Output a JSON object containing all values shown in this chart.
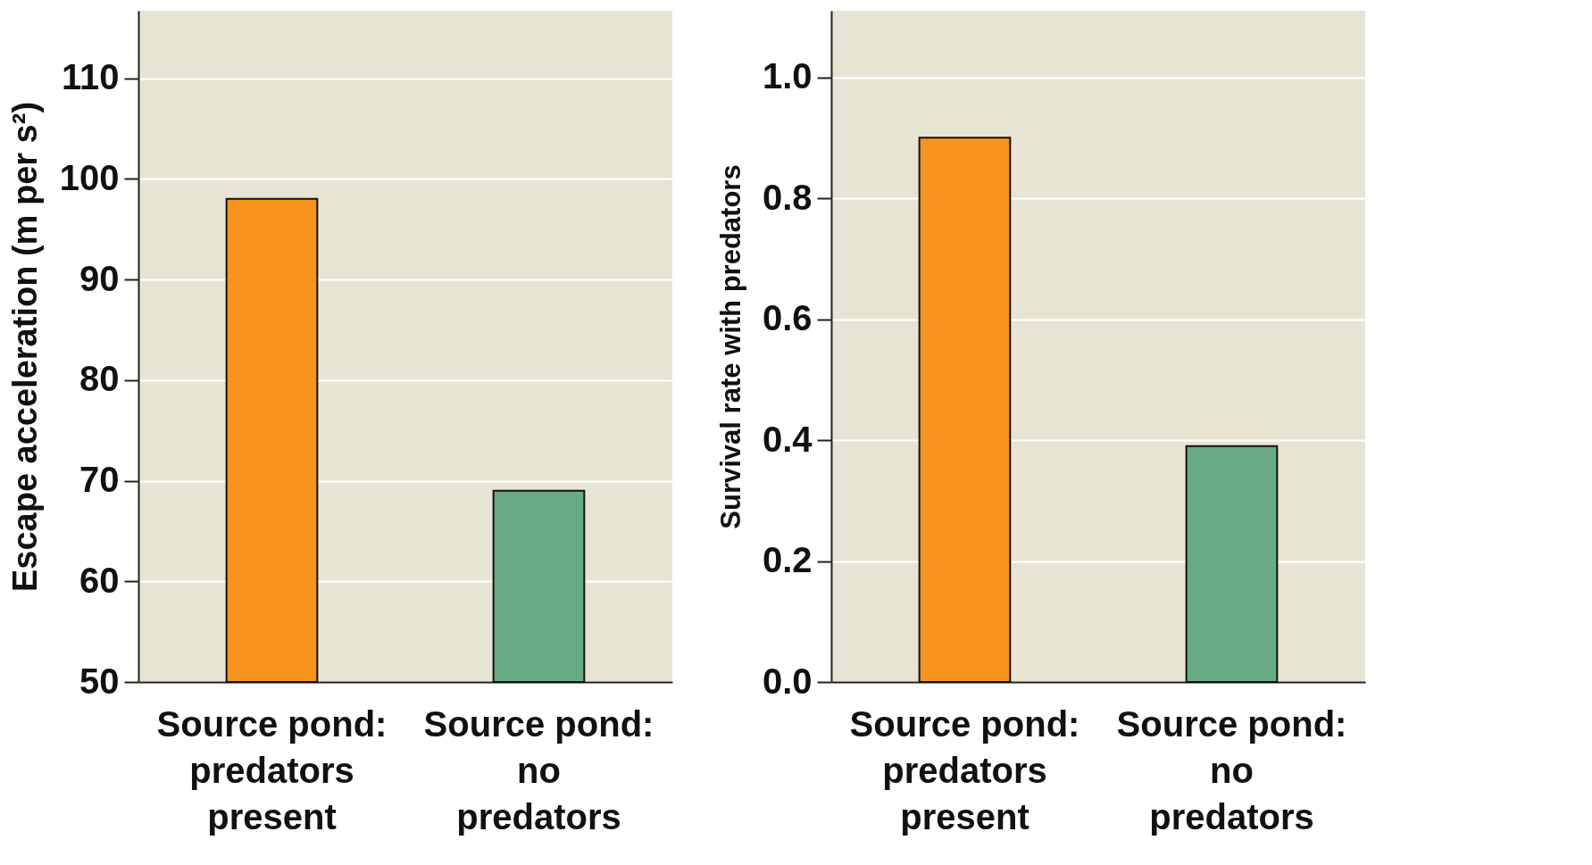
{
  "chart_data": [
    {
      "type": "bar",
      "ylabel": "Escape acceleration (m per s²)",
      "categories": [
        "Source pond: predators present",
        "Source pond: no predators"
      ],
      "values": [
        98,
        69
      ],
      "colors": [
        "#f7941d",
        "#6aab87"
      ],
      "ylim": [
        50,
        116.7
      ],
      "yticks": [
        50,
        60,
        70,
        80,
        90,
        100,
        110
      ],
      "grid": "y"
    },
    {
      "type": "bar",
      "ylabel": "Survival rate with predators",
      "categories": [
        "Source pond: predators present",
        "Source pond: no predators"
      ],
      "values": [
        0.9,
        0.39
      ],
      "colors": [
        "#f7941d",
        "#6aab87"
      ],
      "ylim": [
        0,
        1.11
      ],
      "yticks": [
        {
          "value": 0,
          "label": "0.0"
        },
        {
          "value": 0.2,
          "label": "0.2"
        },
        {
          "value": 0.4,
          "label": "0.4"
        },
        {
          "value": 0.6,
          "label": "0.6"
        },
        {
          "value": 0.8,
          "label": "0.8"
        },
        {
          "value": 1,
          "label": "1.0"
        }
      ],
      "grid": "y"
    }
  ]
}
